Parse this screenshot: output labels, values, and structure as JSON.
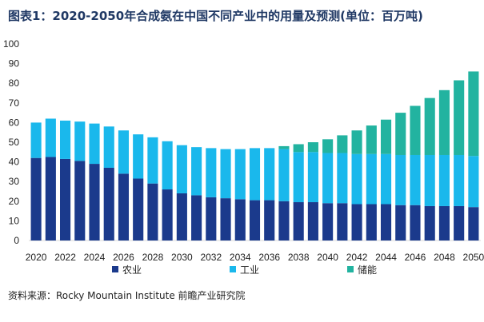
{
  "header": {
    "title": "图表1：2020-2050年合成氨在中国不同产业中的用量及预测(单位：百万吨)"
  },
  "footer": {
    "source": "资料来源：Rocky Mountain Institute 前瞻产业研究院"
  },
  "colors": {
    "agriculture": "#1b3a8c",
    "industry": "#1ab8ec",
    "energy_storage": "#22b3a0",
    "grid": "#d9d9d9"
  },
  "chart_data": {
    "type": "bar",
    "stacked": true,
    "title": "图表1：2020-2050年合成氨在中国不同产业中的用量及预测(单位：百万吨)",
    "unit": "百万吨",
    "x": [
      2020,
      2021,
      2022,
      2023,
      2024,
      2025,
      2026,
      2027,
      2028,
      2029,
      2030,
      2031,
      2032,
      2033,
      2034,
      2035,
      2036,
      2037,
      2038,
      2039,
      2040,
      2041,
      2042,
      2043,
      2044,
      2045,
      2046,
      2047,
      2048,
      2049,
      2050
    ],
    "x_tick_labels": [
      "2020",
      "2022",
      "2024",
      "2026",
      "2028",
      "2030",
      "2032",
      "2034",
      "2036",
      "2038",
      "2040",
      "2042",
      "2044",
      "2046",
      "2048",
      "2050"
    ],
    "ylim": [
      0,
      100
    ],
    "yticks": [
      0,
      10,
      20,
      30,
      40,
      50,
      60,
      70,
      80,
      90,
      100
    ],
    "grid": false,
    "legend_position": "bottom",
    "series": [
      {
        "name": "农业",
        "values": [
          42,
          42.5,
          41.5,
          40.5,
          39,
          37,
          34,
          31.5,
          29,
          26,
          24,
          23,
          22,
          21.5,
          21,
          20.5,
          20.5,
          20,
          19.5,
          19.5,
          19,
          19,
          18.5,
          18.5,
          18.5,
          18,
          18,
          17.5,
          17.5,
          17.5,
          17
        ]
      },
      {
        "name": "工业",
        "values": [
          18,
          19.5,
          19.5,
          20,
          20.5,
          21,
          22,
          22.5,
          23.5,
          24.5,
          24.5,
          24.5,
          25,
          25,
          25.5,
          26.5,
          26.5,
          26.5,
          25.5,
          25.5,
          25.5,
          25.5,
          25.5,
          25.5,
          25.5,
          25.5,
          25.5,
          26,
          26,
          26,
          26
        ]
      },
      {
        "name": "储能",
        "values": [
          0,
          0,
          0,
          0,
          0,
          0,
          0,
          0,
          0,
          0,
          0,
          0,
          0,
          0,
          0,
          0,
          0,
          1.5,
          4,
          5,
          7,
          9,
          12,
          14.5,
          17.5,
          21.5,
          25,
          29,
          33,
          38,
          43
        ]
      }
    ]
  }
}
